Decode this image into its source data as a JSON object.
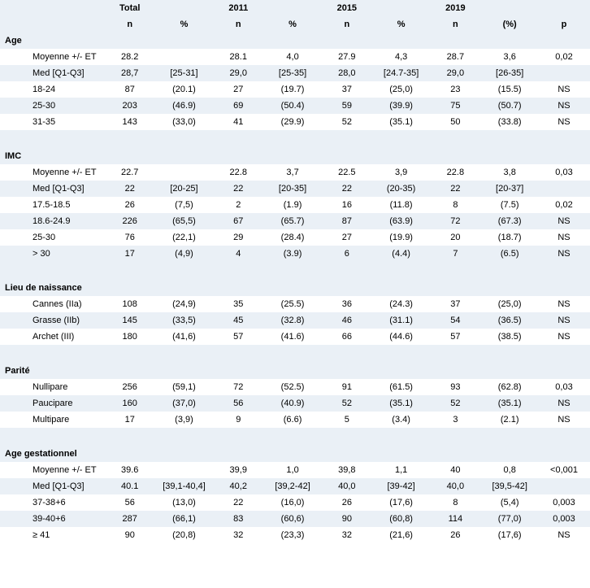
{
  "columns": {
    "groups": [
      "",
      "Total",
      "",
      "2011",
      "",
      "2015",
      "",
      "2019",
      "",
      ""
    ],
    "subs": [
      "",
      "n",
      "%",
      "n",
      "%",
      "n",
      "%",
      "n",
      "(%)",
      "p"
    ]
  },
  "sections": [
    {
      "title": "Age",
      "rows": [
        {
          "label": "Moyenne +/- ET",
          "c": [
            "28.2",
            "",
            "28.1",
            "4,0",
            "27.9",
            "4,3",
            "28.7",
            "3,6",
            "0,02"
          ]
        },
        {
          "label": "Med [Q1-Q3]",
          "c": [
            "28,7",
            "[25-31]",
            "29,0",
            "[25-35]",
            "28,0",
            "[24.7-35]",
            "29,0",
            "[26-35]",
            ""
          ]
        },
        {
          "label": "18-24",
          "c": [
            "87",
            "(20.1)",
            "27",
            "(19.7)",
            "37",
            "(25,0)",
            "23",
            "(15.5)",
            "NS"
          ]
        },
        {
          "label": "25-30",
          "c": [
            "203",
            "(46.9)",
            "69",
            "(50.4)",
            "59",
            "(39.9)",
            "75",
            "(50.7)",
            "NS"
          ]
        },
        {
          "label": "31-35",
          "c": [
            "143",
            "(33,0)",
            "41",
            "(29.9)",
            "52",
            "(35.1)",
            "50",
            "(33.8)",
            "NS"
          ]
        }
      ]
    },
    {
      "title": "IMC",
      "rows": [
        {
          "label": "Moyenne +/- ET",
          "c": [
            "22.7",
            "",
            "22.8",
            "3,7",
            "22.5",
            "3,9",
            "22.8",
            "3,8",
            "0,03"
          ]
        },
        {
          "label": "Med [Q1-Q3]",
          "c": [
            "22",
            "[20-25]",
            "22",
            "[20-35]",
            "22",
            "(20-35)",
            "22",
            "[20-37]",
            ""
          ]
        },
        {
          "label": "17.5-18.5",
          "c": [
            "26",
            "(7,5)",
            "2",
            "(1.9)",
            "16",
            "(11.8)",
            "8",
            "(7.5)",
            "0,02"
          ]
        },
        {
          "label": "18.6-24.9",
          "c": [
            "226",
            "(65,5)",
            "67",
            "(65.7)",
            "87",
            "(63.9)",
            "72",
            "(67.3)",
            "NS"
          ]
        },
        {
          "label": "25-30",
          "c": [
            "76",
            "(22,1)",
            "29",
            "(28.4)",
            "27",
            "(19.9)",
            "20",
            "(18.7)",
            "NS"
          ]
        },
        {
          "label": "> 30",
          "c": [
            "17",
            "(4,9)",
            "4",
            "(3.9)",
            "6",
            "(4.4)",
            "7",
            "(6.5)",
            "NS"
          ]
        }
      ]
    },
    {
      "title": "Lieu de naissance",
      "rows": [
        {
          "label": "Cannes (IIa)",
          "c": [
            "108",
            "(24,9)",
            "35",
            "(25.5)",
            "36",
            "(24.3)",
            "37",
            "(25,0)",
            "NS"
          ]
        },
        {
          "label": "Grasse (IIb)",
          "c": [
            "145",
            "(33,5)",
            "45",
            "(32.8)",
            "46",
            "(31.1)",
            "54",
            "(36.5)",
            "NS"
          ]
        },
        {
          "label": "Archet (III)",
          "c": [
            "180",
            "(41,6)",
            "57",
            "(41.6)",
            "66",
            "(44.6)",
            "57",
            "(38.5)",
            "NS"
          ]
        }
      ]
    },
    {
      "title": "Parité",
      "rows": [
        {
          "label": "Nullipare",
          "c": [
            "256",
            "(59,1)",
            "72",
            "(52.5)",
            "91",
            "(61.5)",
            "93",
            "(62.8)",
            "0,03"
          ]
        },
        {
          "label": "Paucipare",
          "c": [
            "160",
            "(37,0)",
            "56",
            "(40.9)",
            "52",
            "(35.1)",
            "52",
            "(35.1)",
            "NS"
          ]
        },
        {
          "label": "Multipare",
          "c": [
            "17",
            "(3,9)",
            "9",
            "(6.6)",
            "5",
            "(3.4)",
            "3",
            "(2.1)",
            "NS"
          ]
        }
      ]
    },
    {
      "title": "Age gestationnel",
      "rows": [
        {
          "label": "Moyenne +/- ET",
          "c": [
            "39.6",
            "",
            "39,9",
            "1,0",
            "39,8",
            "1,1",
            "40",
            "0,8",
            "<0,001"
          ]
        },
        {
          "label": "Med [Q1-Q3]",
          "c": [
            "40.1",
            "[39,1-40,4]",
            "40,2",
            "[39,2-42]",
            "40,0",
            "[39-42]",
            "40,0",
            "[39,5-42]",
            ""
          ]
        },
        {
          "label": "37-38+6",
          "c": [
            "56",
            "(13,0)",
            "22",
            "(16,0)",
            "26",
            "(17,6)",
            "8",
            "(5,4)",
            "0,003"
          ]
        },
        {
          "label": "39-40+6",
          "c": [
            "287",
            "(66,1)",
            "83",
            "(60,6)",
            "90",
            "(60,8)",
            "114",
            "(77,0)",
            "0,003"
          ]
        },
        {
          "label": "≥ 41",
          "c": [
            "90",
            "(20,8)",
            "32",
            "(23,3)",
            "32",
            "(21,6)",
            "26",
            "(17,6)",
            "NS"
          ]
        }
      ]
    }
  ],
  "style": {
    "header_bg": "#eaf0f6",
    "row_odd_bg": "#eaf0f6",
    "row_even_bg": "#ffffff",
    "font_size_pt": 11,
    "font_family": "Arial"
  }
}
